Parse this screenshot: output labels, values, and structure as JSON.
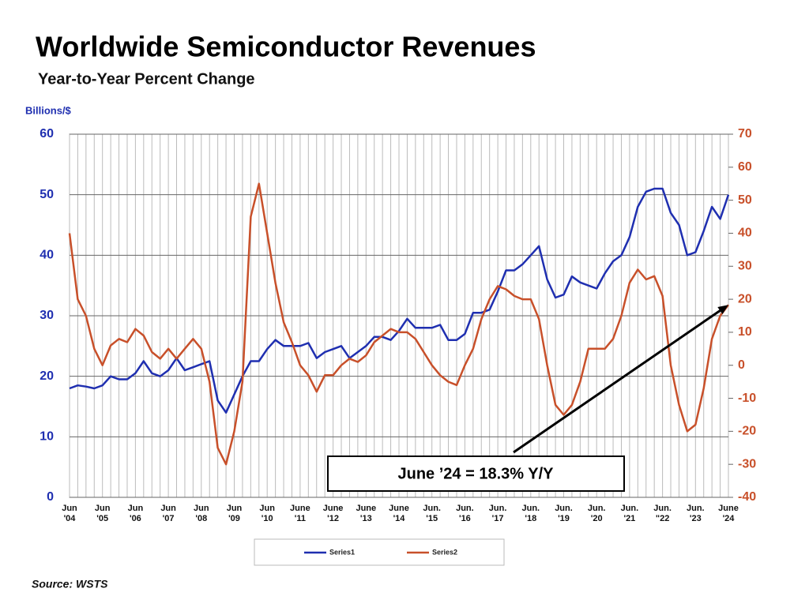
{
  "chart_data": {
    "type": "line",
    "title": "Worldwide Semiconductor Revenues",
    "subtitle": "Year-to-Year Percent Change",
    "y_label": "Billions/$",
    "source": "Source: WSTS",
    "annotation": "June ’24 = 18.3% Y/Y",
    "legend": "bottom",
    "grid": true,
    "ylim": [
      0,
      60
    ],
    "yticks": [
      0,
      10,
      20,
      30,
      40,
      50,
      60
    ],
    "y2lim": [
      -40,
      70
    ],
    "y2ticks": [
      -40,
      -30,
      -20,
      -10,
      0,
      10,
      20,
      30,
      40,
      50,
      60,
      70
    ],
    "categories": [
      "Jun\n'04",
      null,
      null,
      null,
      "Jun\n'05",
      null,
      null,
      null,
      "Jun\n'06",
      null,
      null,
      null,
      "Jun\n'07",
      null,
      null,
      null,
      "Jun\n'08",
      null,
      null,
      null,
      "Jun\n'09",
      null,
      null,
      null,
      "Jun\n'10",
      null,
      null,
      null,
      "June\n'11",
      null,
      null,
      null,
      "June\n'12",
      null,
      null,
      null,
      "June\n'13",
      null,
      null,
      null,
      "June\n'14",
      null,
      null,
      null,
      "Jun.\n'15",
      null,
      null,
      null,
      "Jun.\n'16",
      null,
      null,
      null,
      "Jun.\n'17",
      null,
      null,
      null,
      "Jun.\n'18",
      null,
      null,
      null,
      "Jun.\n'19",
      null,
      null,
      null,
      "Jun.\n'20",
      null,
      null,
      null,
      "Jun.\n'21",
      null,
      null,
      null,
      "Jun.\n\"22",
      null,
      null,
      null,
      "Jun.\n'23",
      null,
      null,
      null,
      "June\n'24"
    ],
    "series": [
      {
        "name": "Series1",
        "color": "#1f2fb0",
        "axis": "y",
        "values": [
          18,
          18.5,
          18.3,
          18,
          18.5,
          20,
          19.5,
          19.5,
          20.5,
          22.5,
          20.5,
          20,
          21,
          23,
          21,
          21.5,
          22,
          22.5,
          16,
          14,
          17,
          20,
          22.5,
          22.5,
          24.5,
          26,
          25,
          25,
          25,
          25.5,
          23,
          24,
          24.5,
          25,
          23,
          24,
          25,
          26.5,
          26.5,
          26,
          27.5,
          29.5,
          28,
          28,
          28,
          28.5,
          26,
          26,
          27,
          30.5,
          30.5,
          31,
          34,
          37.5,
          37.5,
          38.5,
          40,
          41.5,
          36,
          33,
          33.5,
          36.5,
          35.5,
          35,
          34.5,
          37,
          39,
          40,
          43,
          48,
          50.5,
          51,
          51,
          47,
          45,
          40,
          40.5,
          44,
          48,
          46,
          50
        ]
      },
      {
        "name": "Series2",
        "color": "#c8502a",
        "axis": "y2",
        "values": [
          40,
          20,
          15,
          5,
          0,
          6,
          8,
          7,
          11,
          9,
          4,
          2,
          5,
          2,
          5,
          8,
          5,
          -5,
          -25,
          -30,
          -20,
          -5,
          45,
          55,
          40,
          25,
          13,
          7,
          0,
          -3,
          -8,
          -3,
          -3,
          0,
          2,
          1,
          3,
          7,
          9,
          11,
          10,
          10,
          8,
          4,
          0,
          -3,
          -5,
          -6,
          0,
          5,
          14,
          20,
          24,
          23,
          21,
          20,
          20,
          14,
          0,
          -12,
          -15,
          -12,
          -5,
          5,
          5,
          5,
          8,
          15,
          25,
          29,
          26,
          27,
          21,
          0,
          -12,
          -20,
          -18,
          -7,
          8,
          15,
          18.3
        ]
      }
    ]
  }
}
